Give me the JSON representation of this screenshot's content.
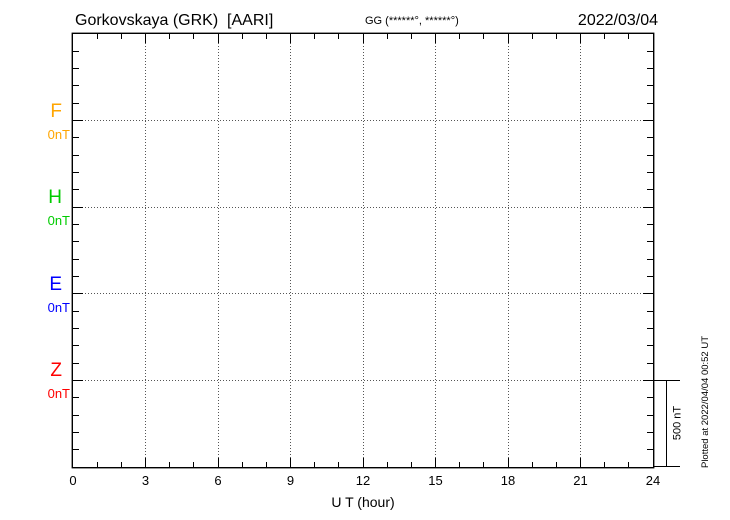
{
  "header": {
    "station_title": "Gorkovskaya (GRK)  [AARI]",
    "coordinates_label": "GG (******°, ******°)",
    "date": "2022/03/04"
  },
  "channels": [
    {
      "name": "F",
      "baseline_label": "0nT",
      "color": "#FFA500"
    },
    {
      "name": "H",
      "baseline_label": "0nT",
      "color": "#00CC00"
    },
    {
      "name": "E",
      "baseline_label": "0nT",
      "color": "#0000FF"
    },
    {
      "name": "Z",
      "baseline_label": "0nT",
      "color": "#FF0000"
    }
  ],
  "x_axis": {
    "label": "U T (hour)",
    "tick_labels": [
      "0",
      "3",
      "6",
      "9",
      "12",
      "15",
      "18",
      "21",
      "24"
    ]
  },
  "scale_bar": {
    "label": "500 nT"
  },
  "footer_note": "Plotted at 2022/04/04 00:52 UT",
  "chart_data": {
    "type": "line",
    "title": "Gorkovskaya (GRK) [AARI] magnetogram",
    "date": "2022/03/04",
    "xlabel": "U T (hour)",
    "x": {
      "min": 0,
      "max": 24,
      "minor_tick_step_hours": 1,
      "major_tick_step_hours": 3,
      "gridline_hours": [
        3,
        6,
        9,
        12,
        15,
        18,
        21
      ],
      "tick_labels": [
        "0",
        "3",
        "6",
        "9",
        "12",
        "15",
        "18",
        "21",
        "24"
      ]
    },
    "y": {
      "unit": "nT",
      "nT_per_division": 100,
      "divisions_total": 25,
      "major_division_every": 5,
      "baseline_divisions": [
        5,
        10,
        15,
        20
      ],
      "baseline_value_label": "0nT",
      "scale_bar_nT": 500
    },
    "series": [
      {
        "name": "F",
        "color": "#FFA500",
        "values": []
      },
      {
        "name": "H",
        "color": "#00CC00",
        "values": []
      },
      {
        "name": "E",
        "color": "#0000FF",
        "values": []
      },
      {
        "name": "Z",
        "color": "#FF0000",
        "values": []
      }
    ],
    "note": "No trace data plotted for this day; only 0 nT baselines shown for each channel"
  }
}
